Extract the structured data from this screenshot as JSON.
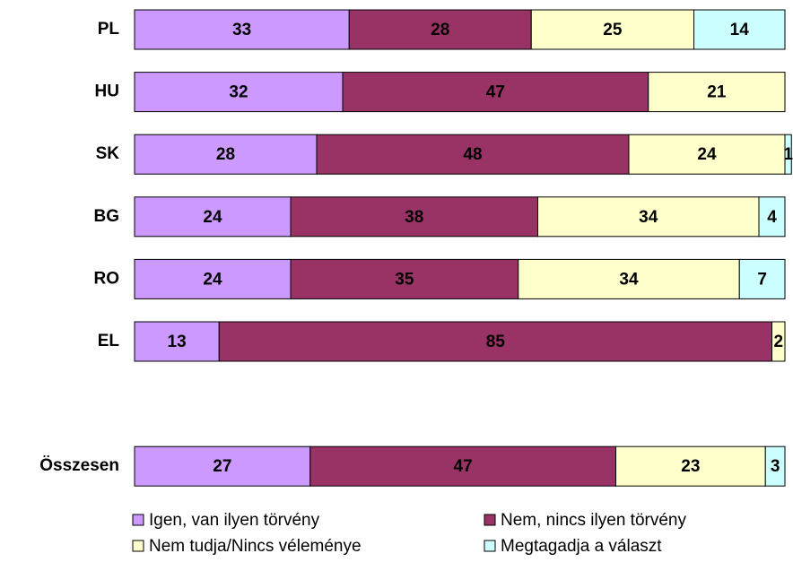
{
  "chart_data": {
    "type": "stacked-bar-horizontal",
    "categories": [
      "PL",
      "HU",
      "SK",
      "BG",
      "RO",
      "EL",
      null,
      "Összesen"
    ],
    "series": [
      {
        "name": "Igen, van ilyen törvény",
        "color": "#cc99ff",
        "values": [
          33,
          32,
          28,
          24,
          24,
          13,
          null,
          27
        ]
      },
      {
        "name": "Nem, nincs ilyen törvény",
        "color": "#993366",
        "values": [
          28,
          47,
          48,
          38,
          35,
          85,
          null,
          47
        ]
      },
      {
        "name": "Nem tudja/Nincs véleménye",
        "color": "#ffffcc",
        "values": [
          25,
          21,
          24,
          34,
          34,
          2,
          null,
          23
        ]
      },
      {
        "name": "Megtagadja a választ",
        "color": "#ccffff",
        "values": [
          14,
          null,
          1,
          4,
          7,
          null,
          null,
          3
        ]
      }
    ],
    "xlim": [
      0,
      100
    ]
  }
}
